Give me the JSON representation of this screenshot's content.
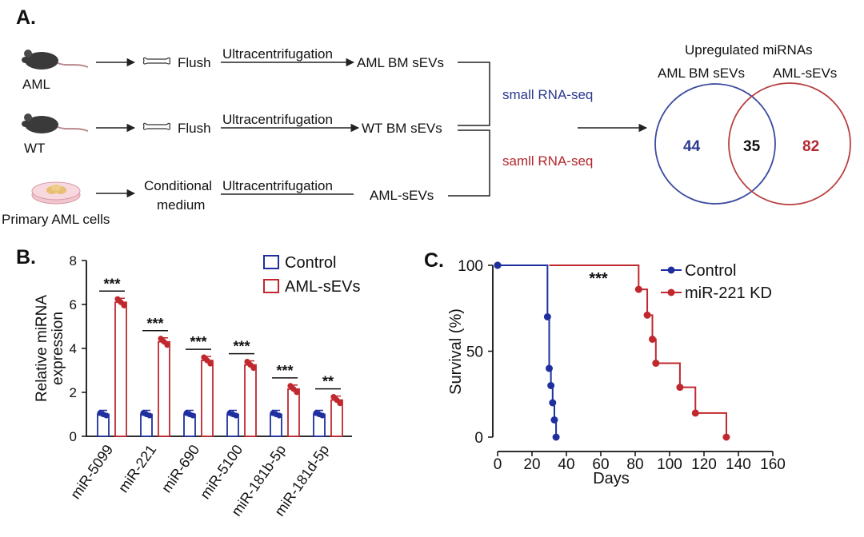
{
  "panels": {
    "a": "A.",
    "b": "B.",
    "c": "C."
  },
  "workflow": {
    "rows": [
      {
        "source": "AML",
        "input": "Flush",
        "method": "Ultracentrifugation",
        "product": "AML BM sEVs"
      },
      {
        "source": "WT",
        "input": "Flush",
        "method": "Ultracentrifugation",
        "product": "WT  BM sEVs"
      },
      {
        "source": "Primary AML cells",
        "input_line1": "Conditional",
        "input_line2": "medium",
        "method": "Ultracentrifugation",
        "product": "AML-sEVs"
      }
    ],
    "seq_top": "small  RNA-seq",
    "seq_bottom": "samll  RNA-seq",
    "colors": {
      "blue": "#2b3990",
      "red": "#b2282e"
    }
  },
  "venn": {
    "title": "Upregulated miRNAs",
    "left_label": "AML BM sEVs",
    "right_label": "AML-sEVs",
    "left_only": "44",
    "overlap": "35",
    "right_only": "82",
    "left_color": "#3b4aa0",
    "right_color": "#b84040"
  },
  "chart_data": [
    {
      "type": "bar",
      "categories": [
        "miR-5099",
        "miR-221",
        "miR-690",
        "miR-5100",
        "miR-181b-5p",
        "miR-181d-5p"
      ],
      "series": [
        {
          "name": "Control",
          "values": [
            1.0,
            1.0,
            1.0,
            1.0,
            1.0,
            1.0
          ],
          "color": "#1f2f9f"
        },
        {
          "name": "AML-sEVs",
          "values": [
            6.1,
            4.3,
            3.45,
            3.25,
            2.15,
            1.65
          ],
          "color": "#c0282e"
        }
      ],
      "significance": [
        "***",
        "***",
        "***",
        "***",
        "***",
        "**"
      ],
      "ylabel_line1": "Relative miRNA",
      "ylabel_line2": "expression",
      "ylim": [
        0,
        8
      ],
      "yticks": [
        "0",
        "2",
        "4",
        "6",
        "8"
      ],
      "legend": "top-right"
    },
    {
      "type": "line",
      "xlabel": "Days",
      "ylabel": "Survival (%)",
      "xlim": [
        0,
        160
      ],
      "ylim": [
        0,
        100
      ],
      "xticks": [
        "0",
        "20",
        "40",
        "60",
        "80",
        "100",
        "120",
        "140",
        "160"
      ],
      "yticks": [
        "0",
        "50",
        "100"
      ],
      "significance": "***",
      "series": [
        {
          "name": "Control",
          "color": "#1f2f9f",
          "x": [
            0,
            29,
            30,
            31,
            32,
            33,
            34
          ],
          "y": [
            100,
            70,
            40,
            30,
            20,
            10,
            0
          ]
        },
        {
          "name": "miR-221 KD",
          "color": "#c0282e",
          "x": [
            82,
            87,
            90,
            92,
            106,
            115,
            133
          ],
          "y": [
            86,
            71,
            57,
            43,
            29,
            14,
            0
          ]
        }
      ],
      "legend": "top-right"
    }
  ]
}
